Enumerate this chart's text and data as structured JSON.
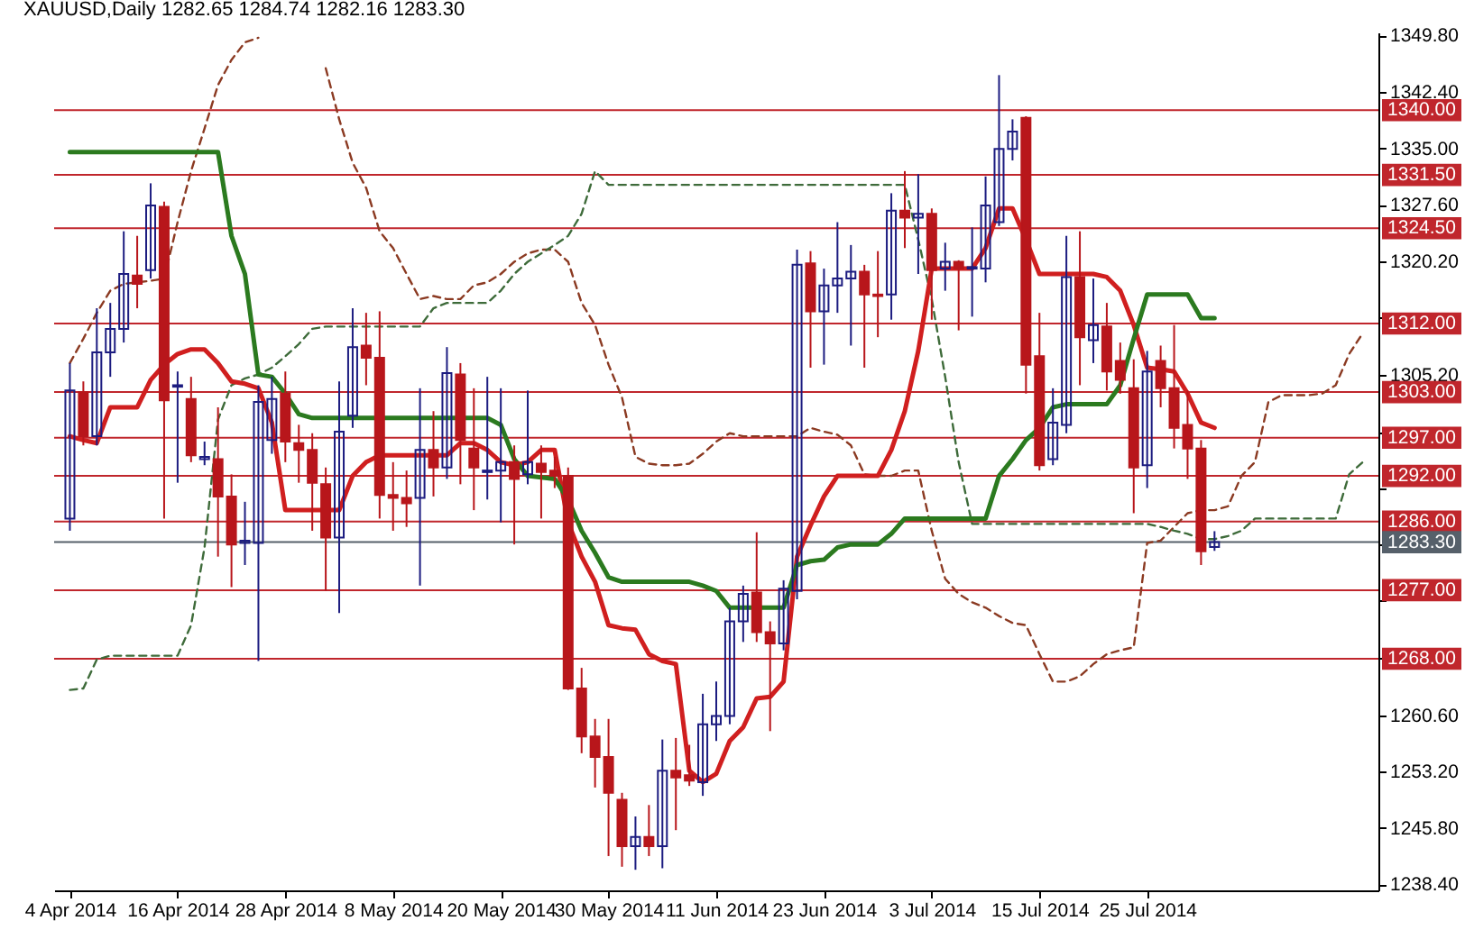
{
  "chart_data": {
    "type": "candlestick",
    "title": "XAUUSD,Daily 1282.65 1284.74 1282.16 1283.30",
    "categories": [
      "4 Apr 2014",
      null,
      null,
      null,
      null,
      null,
      null,
      null,
      "16 Apr 2014",
      null,
      null,
      null,
      null,
      null,
      null,
      null,
      "28 Apr 2014",
      null,
      null,
      null,
      null,
      null,
      null,
      null,
      "8 May 2014",
      null,
      null,
      null,
      null,
      null,
      null,
      null,
      "20 May 2014",
      null,
      null,
      null,
      null,
      null,
      null,
      null,
      "30 May 2014",
      null,
      null,
      null,
      null,
      null,
      null,
      null,
      "11 Jun 2014",
      null,
      null,
      null,
      null,
      null,
      null,
      null,
      "23 Jun 2014",
      null,
      null,
      null,
      null,
      null,
      null,
      null,
      "3 Jul 2014",
      null,
      null,
      null,
      null,
      null,
      null,
      null,
      "15 Jul 2014",
      null,
      null,
      null,
      null,
      null,
      null,
      null,
      "25 Jul 2014",
      null,
      null,
      null,
      null,
      null,
      null,
      null,
      null,
      null,
      null,
      null,
      null,
      null,
      null,
      null,
      null
    ],
    "ohlc": [
      [
        1286.4,
        1306.8,
        1284.8,
        1303.2
      ],
      [
        1303.0,
        1304.4,
        1296.0,
        1297.2
      ],
      [
        1297.2,
        1314.0,
        1296.0,
        1308.2
      ],
      [
        1308.2,
        1314.7,
        1305.0,
        1311.3
      ],
      [
        1311.3,
        1324.1,
        1309.5,
        1318.5
      ],
      [
        1318.3,
        1323.5,
        1314.0,
        1317.2
      ],
      [
        1319.0,
        1330.4,
        1317.9,
        1327.5
      ],
      [
        1327.3,
        1328.0,
        1286.4,
        1301.9
      ],
      [
        1303.7,
        1305.7,
        1291.1,
        1303.9
      ],
      [
        1302.1,
        1305.0,
        1293.8,
        1294.7
      ],
      [
        1294.2,
        1296.5,
        1293.4,
        1294.5
      ],
      [
        1294.2,
        1301.0,
        1281.4,
        1289.3
      ],
      [
        1289.3,
        1292.2,
        1277.4,
        1283.0
      ],
      [
        1283.2,
        1288.6,
        1280.3,
        1283.5
      ],
      [
        1283.2,
        1303.9,
        1267.7,
        1301.7
      ],
      [
        1296.7,
        1305.0,
        1294.9,
        1302.1
      ],
      [
        1302.8,
        1305.7,
        1293.8,
        1296.5
      ],
      [
        1296.3,
        1298.7,
        1291.1,
        1295.4
      ],
      [
        1295.4,
        1297.6,
        1284.8,
        1291.1
      ],
      [
        1290.9,
        1293.1,
        1276.9,
        1283.9
      ],
      [
        1283.9,
        1304.4,
        1274.0,
        1297.8
      ],
      [
        1299.9,
        1314.0,
        1298.3,
        1308.9
      ],
      [
        1309.1,
        1313.4,
        1303.9,
        1307.5
      ],
      [
        1307.5,
        1313.6,
        1286.4,
        1289.5
      ],
      [
        1289.5,
        1293.8,
        1284.8,
        1289.1
      ],
      [
        1289.1,
        1292.7,
        1285.3,
        1288.4
      ],
      [
        1289.1,
        1303.5,
        1277.6,
        1295.4
      ],
      [
        1295.4,
        1300.5,
        1289.3,
        1293.1
      ],
      [
        1293.1,
        1308.9,
        1291.6,
        1305.5
      ],
      [
        1305.3,
        1306.8,
        1290.9,
        1296.7
      ],
      [
        1295.6,
        1303.5,
        1287.5,
        1293.1
      ],
      [
        1292.5,
        1305.0,
        1288.9,
        1292.7
      ],
      [
        1292.7,
        1303.5,
        1285.9,
        1293.8
      ],
      [
        1293.8,
        1296.0,
        1283.0,
        1291.6
      ],
      [
        1292.2,
        1303.2,
        1290.9,
        1293.8
      ],
      [
        1293.6,
        1296.0,
        1286.4,
        1292.5
      ],
      [
        1292.7,
        1294.5,
        1290.4,
        1292.0
      ],
      [
        1292.0,
        1293.1,
        1263.9,
        1264.1
      ],
      [
        1264.1,
        1266.8,
        1255.6,
        1257.8
      ],
      [
        1257.8,
        1260.1,
        1251.1,
        1255.1
      ],
      [
        1255.1,
        1260.1,
        1242.1,
        1250.4
      ],
      [
        1249.5,
        1250.4,
        1240.7,
        1243.4
      ],
      [
        1243.4,
        1247.3,
        1240.3,
        1244.6
      ],
      [
        1244.6,
        1248.8,
        1242.1,
        1243.4
      ],
      [
        1243.4,
        1257.4,
        1240.5,
        1253.3
      ],
      [
        1253.3,
        1257.6,
        1245.5,
        1252.4
      ],
      [
        1252.7,
        1256.7,
        1251.3,
        1252.0
      ],
      [
        1251.8,
        1263.4,
        1250.0,
        1259.4
      ],
      [
        1259.4,
        1265.0,
        1257.2,
        1260.5
      ],
      [
        1260.5,
        1274.7,
        1259.4,
        1272.9
      ],
      [
        1272.9,
        1277.6,
        1270.2,
        1276.5
      ],
      [
        1276.7,
        1284.6,
        1270.2,
        1271.5
      ],
      [
        1271.5,
        1272.9,
        1258.5,
        1270.0
      ],
      [
        1270.0,
        1278.3,
        1269.1,
        1277.2
      ],
      [
        1276.9,
        1321.7,
        1275.8,
        1319.7
      ],
      [
        1319.9,
        1321.5,
        1306.2,
        1313.6
      ],
      [
        1313.6,
        1319.2,
        1306.6,
        1317.0
      ],
      [
        1317.0,
        1325.3,
        1313.4,
        1317.9
      ],
      [
        1317.9,
        1322.3,
        1309.1,
        1318.8
      ],
      [
        1318.8,
        1319.7,
        1306.2,
        1315.8
      ],
      [
        1315.8,
        1321.5,
        1310.2,
        1315.6
      ],
      [
        1315.8,
        1329.1,
        1312.5,
        1326.8
      ],
      [
        1326.8,
        1332.0,
        1321.9,
        1325.9
      ],
      [
        1325.9,
        1331.6,
        1318.5,
        1326.4
      ],
      [
        1326.4,
        1327.1,
        1312.5,
        1319.0
      ],
      [
        1319.2,
        1322.6,
        1316.3,
        1320.1
      ],
      [
        1320.1,
        1320.3,
        1311.1,
        1319.2
      ],
      [
        1319.2,
        1324.6,
        1312.9,
        1319.4
      ],
      [
        1319.2,
        1331.3,
        1317.4,
        1327.5
      ],
      [
        1325.3,
        1344.6,
        1324.8,
        1334.9
      ],
      [
        1334.9,
        1338.8,
        1333.4,
        1337.2
      ],
      [
        1339.0,
        1339.2,
        1302.8,
        1306.6
      ],
      [
        1307.7,
        1313.4,
        1292.7,
        1293.4
      ],
      [
        1294.2,
        1303.5,
        1293.4,
        1299.0
      ],
      [
        1298.7,
        1323.5,
        1297.6,
        1318.1
      ],
      [
        1318.1,
        1324.1,
        1303.9,
        1310.2
      ],
      [
        1309.8,
        1317.9,
        1306.8,
        1311.8
      ],
      [
        1311.6,
        1314.7,
        1303.2,
        1305.7
      ],
      [
        1307.1,
        1309.5,
        1302.8,
        1304.6
      ],
      [
        1303.5,
        1307.3,
        1287.1,
        1293.1
      ],
      [
        1293.4,
        1308.4,
        1290.4,
        1305.7
      ],
      [
        1307.1,
        1309.1,
        1301.0,
        1303.5
      ],
      [
        1303.5,
        1311.8,
        1295.6,
        1298.3
      ],
      [
        1298.7,
        1303.2,
        1291.6,
        1295.6
      ],
      [
        1295.6,
        1296.7,
        1280.3,
        1282.1
      ],
      [
        1282.65,
        1284.74,
        1282.16,
        1283.3
      ],
      null,
      null,
      null,
      null,
      null,
      null,
      null,
      null,
      null,
      null,
      null
    ],
    "colors": [
      "#1c1c80",
      "#b8161b",
      "#1c1c80",
      "#1c1c80",
      "#1c1c80",
      "#b8161b",
      "#1c1c80",
      "#b8161b",
      "#1c1c80",
      "#b8161b",
      "#1c1c80",
      "#b8161b",
      "#b8161b",
      "#1c1c80",
      "#1c1c80",
      "#1c1c80",
      "#b8161b",
      "#b8161b",
      "#b8161b",
      "#b8161b",
      "#1c1c80",
      "#1c1c80",
      "#b8161b",
      "#b8161b",
      "#b8161b",
      "#b8161b",
      "#1c1c80",
      "#b8161b",
      "#1c1c80",
      "#b8161b",
      "#b8161b",
      "#1c1c80",
      "#1c1c80",
      "#b8161b",
      "#1c1c80",
      "#b8161b",
      "#b8161b",
      "#b8161b",
      "#b8161b",
      "#b8161b",
      "#b8161b",
      "#b8161b",
      "#1c1c80",
      "#b8161b",
      "#1c1c80",
      "#b8161b",
      "#b8161b",
      "#1c1c80",
      "#1c1c80",
      "#1c1c80",
      "#1c1c80",
      "#b8161b",
      "#b8161b",
      "#1c1c80",
      "#1c1c80",
      "#b8161b",
      "#1c1c80",
      "#1c1c80",
      "#1c1c80",
      "#b8161b",
      "#b8161b",
      "#1c1c80",
      "#b8161b",
      "#1c1c80",
      "#b8161b",
      "#1c1c80",
      "#b8161b",
      "#1c1c80",
      "#1c1c80",
      "#1c1c80",
      "#1c1c80",
      "#b8161b",
      "#b8161b",
      "#1c1c80",
      "#1c1c80",
      "#b8161b",
      "#1c1c80",
      "#b8161b",
      "#b8161b",
      "#b8161b",
      "#1c1c80",
      "#b8161b",
      "#b8161b",
      "#b8161b",
      "#b8161b",
      "#1c1c80",
      null,
      null,
      null,
      null,
      null,
      null,
      null,
      null,
      null,
      null,
      null
    ],
    "series": [
      {
        "type": "line",
        "color": "#8b3a22",
        "line_style": "dashed",
        "values": [
          1306.8,
          1310.0,
          1313.4,
          1316.3,
          1317.2,
          1317.4,
          1317.6,
          1317.9,
          1325.3,
          1332.0,
          1337.6,
          1343.3,
          1346.6,
          1348.9,
          1349.5,
          null,
          null,
          null,
          null,
          1345.5,
          1338.8,
          1333.1,
          1329.8,
          1324.1,
          1321.9,
          1318.5,
          1315.2,
          1315.6,
          1315.2,
          1315.2,
          1317.0,
          1317.4,
          1318.5,
          1320.1,
          1321.2,
          1321.7,
          1321.7,
          1320.1,
          1314.7,
          1311.8,
          1306.6,
          1302.3,
          1294.5,
          1293.6,
          1293.4,
          1293.4,
          1293.6,
          1294.9,
          1296.5,
          1297.6,
          1297.2,
          1297.2,
          1297.2,
          1297.2,
          1297.2,
          1298.3,
          1297.8,
          1297.4,
          1296.0,
          1292.2,
          1292.0,
          1292.0,
          1292.7,
          1292.7,
          1284.8,
          1278.5,
          1276.5,
          1275.4,
          1274.7,
          1273.6,
          1272.7,
          1272.4,
          1268.6,
          1265.0,
          1265.0,
          1265.7,
          1267.3,
          1268.6,
          1269.1,
          1269.5,
          1283.2,
          1283.5,
          1285.3,
          1287.1,
          1287.5,
          1287.5,
          1288.0,
          1292.0,
          1293.8,
          1301.7,
          1302.6,
          1302.6,
          1302.6,
          1302.8,
          1303.9,
          1308.0,
          1310.7
        ]
      },
      {
        "type": "line",
        "color": "#3e6b3a",
        "line_style": "dashed",
        "values": [
          1263.9,
          1264.1,
          1267.9,
          1268.4,
          1268.4,
          1268.4,
          1268.4,
          1268.4,
          1268.4,
          1272.4,
          1282.6,
          1299.4,
          1303.9,
          1304.8,
          1305.3,
          1306.2,
          1307.7,
          1309.3,
          1311.3,
          1311.6,
          1311.6,
          1311.6,
          1311.6,
          1311.6,
          1311.6,
          1311.6,
          1311.6,
          1314.0,
          1314.7,
          1314.7,
          1314.7,
          1314.7,
          1316.3,
          1318.5,
          1320.1,
          1321.2,
          1322.3,
          1323.5,
          1326.4,
          1332.0,
          1330.2,
          1330.2,
          1330.2,
          1330.2,
          1330.2,
          1330.2,
          1330.2,
          1330.2,
          1330.2,
          1330.2,
          1330.2,
          1330.2,
          1330.2,
          1330.2,
          1330.2,
          1330.2,
          1330.2,
          1330.2,
          1330.2,
          1330.2,
          1330.2,
          1330.2,
          1330.2,
          1323.0,
          1315.2,
          1305.0,
          1293.8,
          1285.7,
          1285.7,
          1285.7,
          1285.7,
          1285.7,
          1285.7,
          1285.7,
          1285.7,
          1285.7,
          1285.7,
          1285.7,
          1285.7,
          1285.7,
          1285.7,
          1285.3,
          1284.8,
          1284.4,
          1283.7,
          1283.7,
          1284.1,
          1284.8,
          1286.4,
          1286.4,
          1286.4,
          1286.4,
          1286.4,
          1286.4,
          1286.4,
          1292.2,
          1293.8
        ]
      },
      {
        "type": "line",
        "color": "#d01f1f",
        "values": [
          1297.2,
          1296.7,
          1296.3,
          1301.0,
          1301.0,
          1301.0,
          1304.6,
          1306.6,
          1308.0,
          1308.6,
          1308.6,
          1306.8,
          1304.4,
          1304.1,
          1303.5,
          1299.0,
          1287.5,
          1287.5,
          1287.5,
          1287.5,
          1287.5,
          1292.0,
          1293.8,
          1294.7,
          1294.7,
          1294.7,
          1294.7,
          1294.7,
          1294.7,
          1296.3,
          1296.3,
          1295.4,
          1293.8,
          1293.4,
          1293.8,
          1295.4,
          1295.4,
          1285.9,
          1281.4,
          1278.1,
          1272.4,
          1272.0,
          1271.8,
          1268.6,
          1267.7,
          1267.3,
          1253.3,
          1251.8,
          1252.9,
          1257.2,
          1259.0,
          1262.8,
          1263.0,
          1265.0,
          1281.4,
          1285.5,
          1289.3,
          1292.0,
          1292.0,
          1292.0,
          1292.0,
          1295.4,
          1300.5,
          1308.4,
          1319.2,
          1319.2,
          1319.2,
          1319.2,
          1321.9,
          1327.1,
          1327.1,
          1323.0,
          1318.5,
          1318.5,
          1318.5,
          1318.5,
          1318.5,
          1318.1,
          1316.3,
          1311.8,
          1306.2,
          1306.0,
          1305.7,
          1302.8,
          1299.0,
          1298.3,
          null,
          null,
          null,
          null,
          null,
          null,
          null,
          null,
          null,
          null,
          null
        ]
      },
      {
        "type": "line",
        "color": "#2b7a1f",
        "values": [
          1334.5,
          1334.5,
          1334.5,
          1334.5,
          1334.5,
          1334.5,
          1334.5,
          1334.5,
          1334.5,
          1334.5,
          1334.5,
          1334.5,
          1323.5,
          1318.5,
          1305.3,
          1305.0,
          1302.8,
          1300.1,
          1299.6,
          1299.6,
          1299.6,
          1299.6,
          1299.6,
          1299.6,
          1299.6,
          1299.6,
          1299.6,
          1299.6,
          1299.6,
          1299.6,
          1299.6,
          1299.6,
          1298.7,
          1294.2,
          1292.0,
          1291.8,
          1291.6,
          1288.9,
          1284.8,
          1281.9,
          1278.7,
          1278.1,
          1278.1,
          1278.1,
          1278.1,
          1278.1,
          1278.1,
          1277.6,
          1276.9,
          1274.7,
          1274.7,
          1274.7,
          1274.7,
          1274.7,
          1280.3,
          1280.8,
          1281.0,
          1282.6,
          1283.0,
          1283.0,
          1283.0,
          1284.4,
          1286.4,
          1286.4,
          1286.4,
          1286.4,
          1286.4,
          1286.4,
          1286.4,
          1292.0,
          1294.2,
          1296.7,
          1298.3,
          1301.0,
          1301.4,
          1301.4,
          1301.4,
          1301.4,
          1303.9,
          1310.0,
          1315.8,
          1315.8,
          1315.8,
          1315.8,
          1312.7,
          1312.7,
          null,
          null,
          null,
          null,
          null,
          null,
          null,
          null,
          null,
          null,
          null
        ]
      }
    ],
    "ylim": [
      1237.6,
      1350.2
    ],
    "yticks": [
      {
        "value": 1349.8,
        "label": "1349.80"
      },
      {
        "value": 1342.4,
        "label": "1342.40"
      },
      {
        "value": 1335,
        "label": "1335.00"
      },
      {
        "value": 1327.6,
        "label": "1327.60"
      },
      {
        "value": 1320.2,
        "label": "1320.20"
      },
      {
        "value": 1312.8,
        "label": null
      },
      {
        "value": 1305.2,
        "label": "1305.20"
      },
      {
        "value": 1297.8,
        "label": null
      },
      {
        "value": 1290.4,
        "label": null
      },
      {
        "value": 1283,
        "label": null
      },
      {
        "value": 1275.6,
        "label": null
      },
      {
        "value": 1268.2,
        "label": null
      },
      {
        "value": 1260.6,
        "label": "1260.60"
      },
      {
        "value": 1253.2,
        "label": "1253.20"
      },
      {
        "value": 1245.8,
        "label": "1245.80"
      },
      {
        "value": 1238.4,
        "label": "1238.40"
      }
    ],
    "ref_lines": [
      {
        "axis": "y",
        "value": 1340,
        "label": "1340.00",
        "color": "#c0262c"
      },
      {
        "axis": "y",
        "value": 1331.5,
        "label": "1331.50",
        "color": "#c0262c"
      },
      {
        "axis": "y",
        "value": 1324.5,
        "label": "1324.50",
        "color": "#c0262c"
      },
      {
        "axis": "y",
        "value": 1312,
        "label": "1312.00",
        "color": "#c0262c"
      },
      {
        "axis": "y",
        "value": 1303,
        "label": "1303.00",
        "color": "#c0262c"
      },
      {
        "axis": "y",
        "value": 1297,
        "label": "1297.00",
        "color": "#c0262c"
      },
      {
        "axis": "y",
        "value": 1292,
        "label": "1292.00",
        "color": "#c0262c"
      },
      {
        "axis": "y",
        "value": 1286,
        "label": "1286.00",
        "color": "#c0262c"
      },
      {
        "axis": "y",
        "value": 1277,
        "label": "1277.00",
        "color": "#c0262c"
      },
      {
        "axis": "y",
        "value": 1268,
        "label": "1268.00",
        "color": "#c0262c"
      },
      {
        "axis": "y",
        "value": 1283.3,
        "label": "1283.30",
        "color": "#56606a"
      }
    ]
  }
}
